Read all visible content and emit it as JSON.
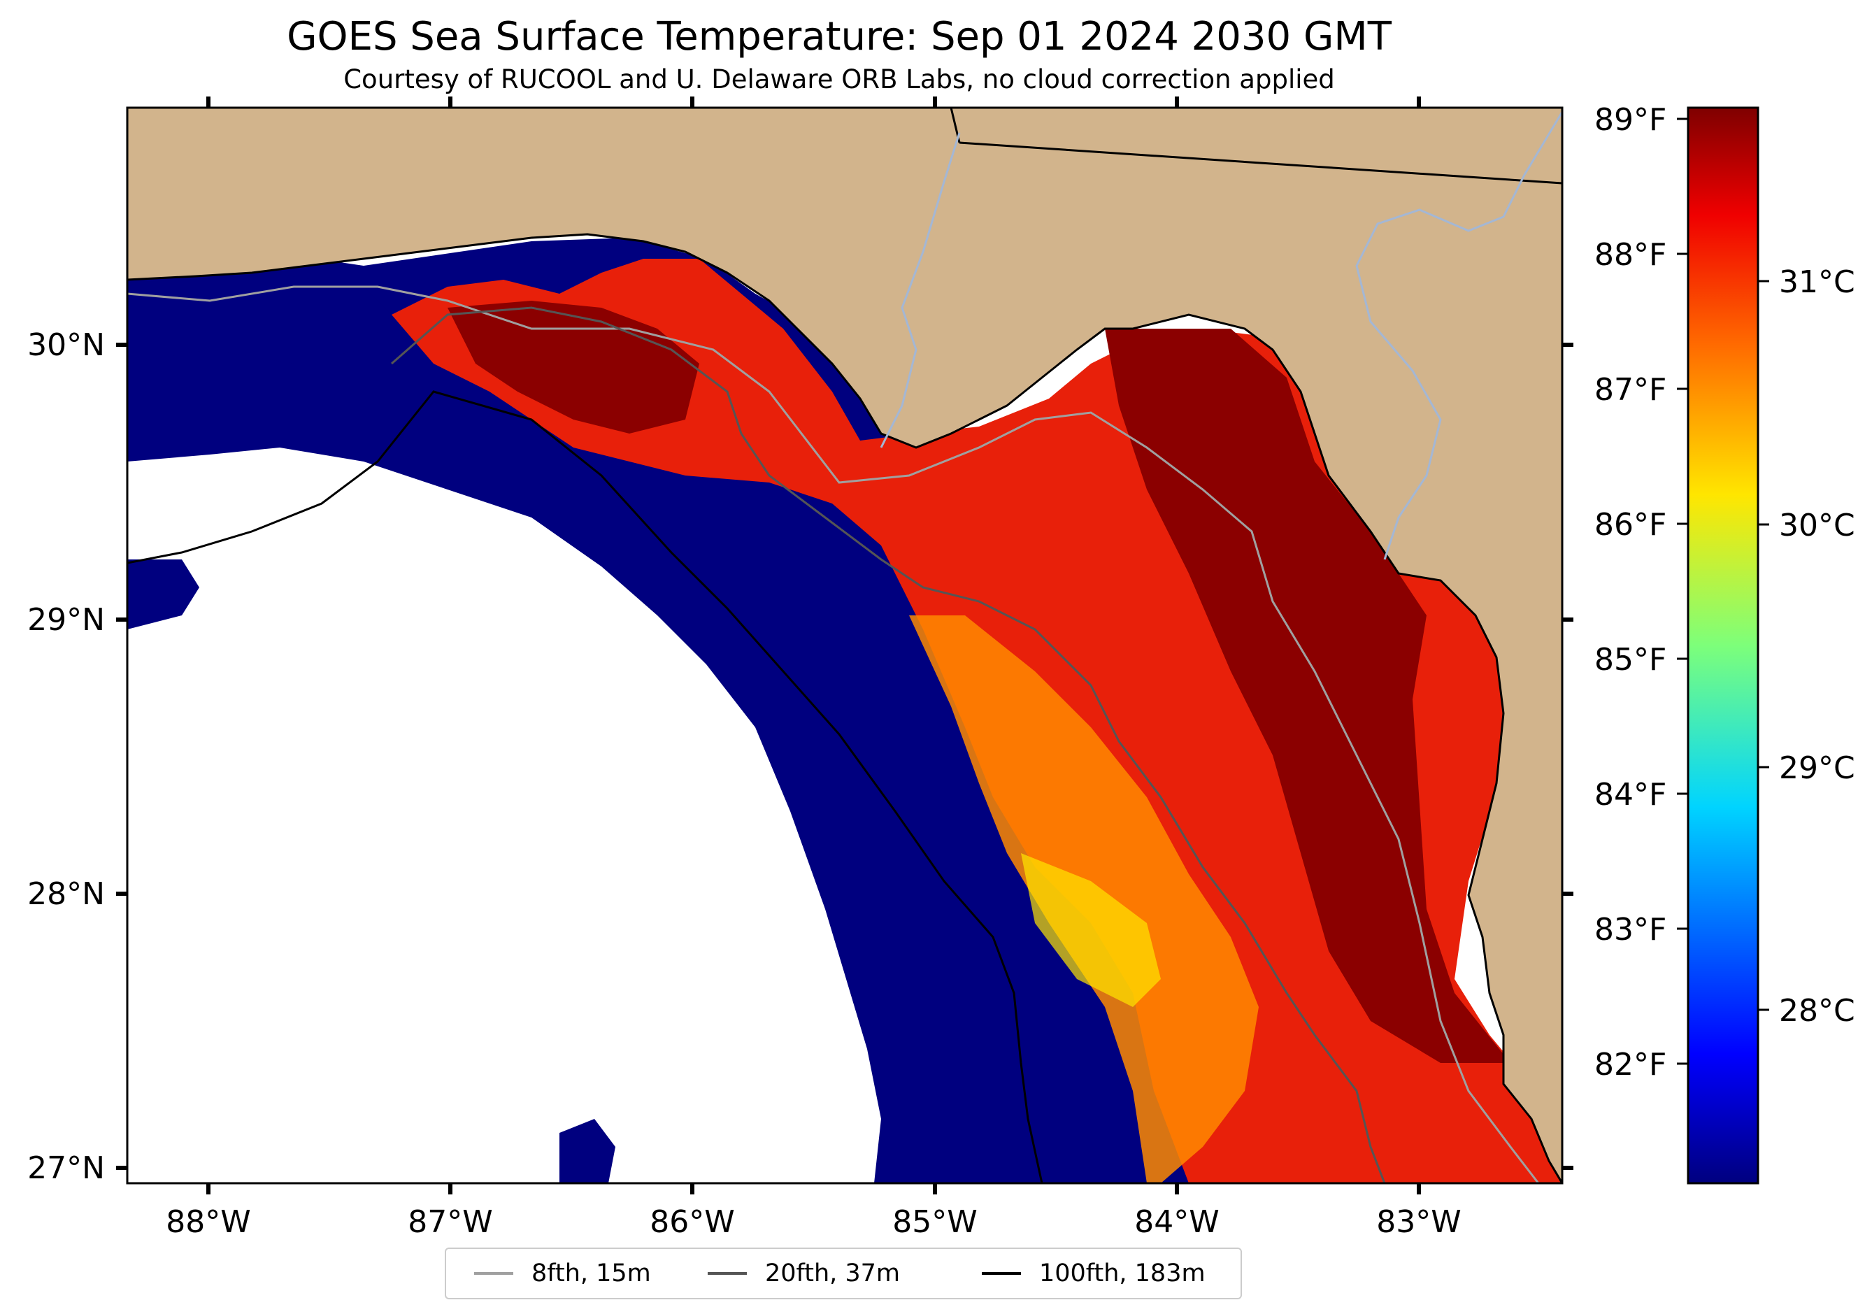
{
  "title": "GOES Sea Surface Temperature: Sep 01 2024 2030 GMT",
  "subtitle": "Courtesy of RUCOOL and U. Delaware ORB Labs, no cloud correction applied",
  "colors": {
    "land": "#d2b48c",
    "cold_water": "#00007f",
    "warm_water": "#e8200a",
    "hot_water": "#8b0000",
    "no_data": "#ffffff",
    "contour_8fth": "#a0a0a0",
    "contour_20fth": "#555555",
    "contour_100fth": "#000000",
    "river": "#a4b7d4"
  },
  "map": {
    "lon_range": [
      -88.33,
      -82.4
    ],
    "lat_range": [
      26.93,
      30.85
    ],
    "lon_ticks": [
      "88°W",
      "87°W",
      "86°W",
      "85°W",
      "84°W",
      "83°W"
    ],
    "lat_ticks": [
      "30°N",
      "29°N",
      "28°N",
      "27°N"
    ]
  },
  "colorbar": {
    "colormap": "jet",
    "fahrenheit_ticks": [
      "89°F",
      "88°F",
      "87°F",
      "86°F",
      "85°F",
      "84°F",
      "83°F",
      "82°F"
    ],
    "celsius_ticks": [
      "31°C",
      "30°C",
      "29°C",
      "28°C"
    ]
  },
  "legend": [
    {
      "label": "8fth, 15m",
      "color": "#a0a0a0"
    },
    {
      "label": "20fth, 37m",
      "color": "#555555"
    },
    {
      "label": "100fth, 183m",
      "color": "#000000"
    }
  ]
}
